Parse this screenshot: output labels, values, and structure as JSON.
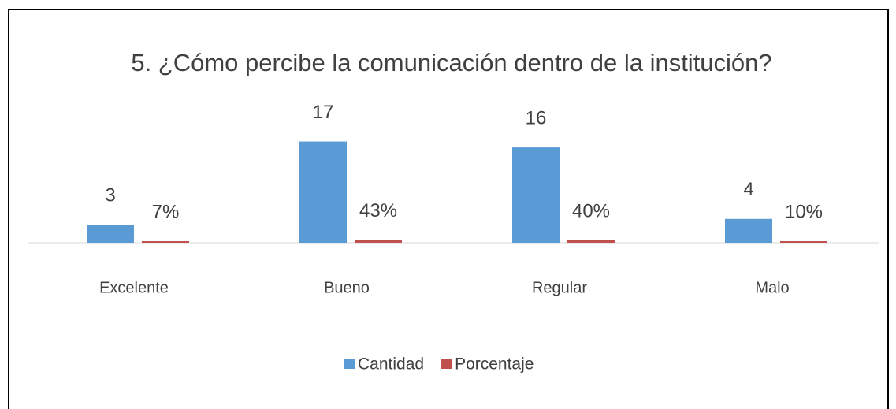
{
  "chart_data": {
    "type": "bar",
    "title": "5. ¿Cómo percibe la comunicación dentro de la institución?",
    "categories": [
      "Excelente",
      "Bueno",
      "Regular",
      "Malo"
    ],
    "series": [
      {
        "name": "Cantidad",
        "color": "#5b9bd5",
        "values": [
          3,
          17,
          16,
          4
        ]
      },
      {
        "name": "Porcentaje",
        "color": "#c0504d",
        "values": [
          0.07,
          0.43,
          0.4,
          0.1
        ],
        "value_labels": [
          "7%",
          "43%",
          "40%",
          "10%"
        ]
      }
    ],
    "ylim": [
      0,
      18
    ],
    "legend": "bottom"
  }
}
